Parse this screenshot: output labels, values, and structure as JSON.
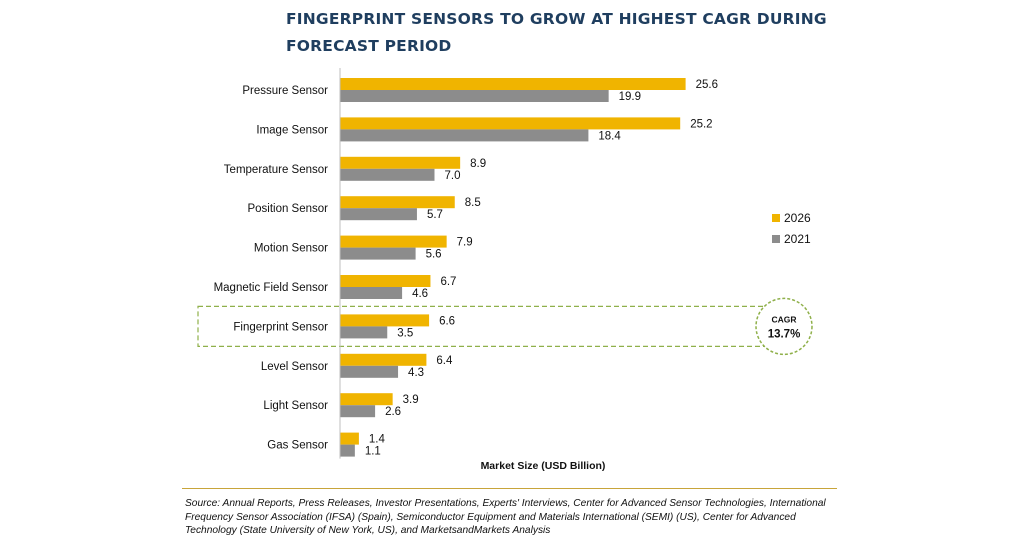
{
  "title": "FINGERPRINT SENSORS TO GROW AT HIGHEST CAGR DURING FORECAST PERIOD",
  "source": "Source: Annual Reports, Press Releases, Investor Presentations, Experts' Interviews, Center for Advanced Sensor Technologies, International Frequency Sensor Association (IFSA) (Spain), Semiconductor Equipment and Materials International (SEMI) (US), Center for Advanced Technology (State University of New York, US), and MarketsandMarkets Analysis",
  "colors": {
    "series_2026": "#f0b400",
    "series_2021": "#8c8c8c",
    "highlight": "#8fb04a",
    "title": "#1f3e5f"
  },
  "chart_data": {
    "type": "bar",
    "orientation": "horizontal",
    "title": "FINGERPRINT SENSORS TO GROW AT HIGHEST CAGR DURING FORECAST PERIOD",
    "xlabel": "Market Size (USD Billion)",
    "ylabel": "",
    "xlim": [
      0,
      30
    ],
    "grid": false,
    "legend_position": "right",
    "categories": [
      "Pressure Sensor",
      "Image Sensor",
      "Temperature Sensor",
      "Position Sensor",
      "Motion Sensor",
      "Magnetic Field Sensor",
      "Fingerprint Sensor",
      "Level Sensor",
      "Light Sensor",
      "Gas Sensor"
    ],
    "series": [
      {
        "name": "2026",
        "values": [
          25.6,
          25.2,
          8.9,
          8.5,
          7.9,
          6.7,
          6.6,
          6.4,
          3.9,
          1.4
        ]
      },
      {
        "name": "2021",
        "values": [
          19.9,
          18.4,
          7.0,
          5.7,
          5.6,
          4.6,
          3.5,
          4.3,
          2.6,
          1.1
        ]
      }
    ],
    "highlight_category": "Fingerprint Sensor",
    "annotation": {
      "label": "CAGR",
      "value": "13.7%"
    }
  }
}
